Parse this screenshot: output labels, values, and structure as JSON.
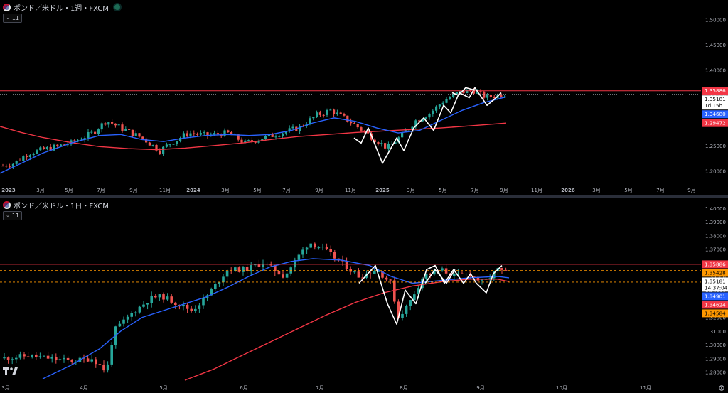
{
  "top_pane": {
    "title": "ポンド／米ドル・1週・FXCM",
    "indicator_count": "11",
    "price_axis": {
      "ticks": [
        "1.50000",
        "1.45000",
        "1.40000",
        "1.35000",
        "1.30000",
        "1.25000",
        "1.20000"
      ],
      "tick_values": [
        1.5,
        1.45,
        1.4,
        1.35,
        1.3,
        1.25,
        1.2
      ],
      "range": [
        1.175,
        1.525
      ]
    },
    "time_axis": {
      "labels": [
        "2023",
        "3月",
        "5月",
        "7月",
        "9月",
        "11月",
        "2024",
        "3月",
        "5月",
        "7月",
        "9月",
        "11月",
        "2025",
        "3月",
        "5月",
        "7月",
        "9月",
        "11月",
        "2026",
        "3月",
        "5月",
        "7月",
        "9月"
      ]
    },
    "price_tags": [
      {
        "label": "1.35886",
        "value": 1.35886,
        "bg": "#f23645",
        "fg": "#ffffff"
      },
      {
        "label": "1.35181",
        "value": 1.35181,
        "bg": "#ffffff",
        "fg": "#000000",
        "sub": [
          "1d 15h"
        ]
      },
      {
        "label": "1.34680",
        "value": 1.3468,
        "bg": "#2962ff",
        "fg": "#ffffff"
      },
      {
        "label": "1.29472",
        "value": 1.29472,
        "bg": "#f23645",
        "fg": "#ffffff"
      }
    ]
  },
  "bottom_pane": {
    "title": "ポンド／米ドル・1日・FXCM",
    "indicator_count": "11",
    "price_axis": {
      "ticks": [
        "1.40000",
        "1.39000",
        "1.38000",
        "1.37000",
        "1.36000",
        "1.35000",
        "1.34000",
        "1.33000",
        "1.32000",
        "1.31000",
        "1.30000",
        "1.29000",
        "1.28000"
      ],
      "tick_values": [
        1.4,
        1.39,
        1.38,
        1.37,
        1.36,
        1.35,
        1.34,
        1.33,
        1.32,
        1.31,
        1.3,
        1.29,
        1.28
      ],
      "range": [
        1.2735,
        1.4025
      ]
    },
    "time_axis": {
      "labels": [
        "3月",
        "4月",
        "5月",
        "6月",
        "7月",
        "8月",
        "9月",
        "10月",
        "11月"
      ]
    },
    "price_tags": [
      {
        "label": "1.35886",
        "value": 1.35886,
        "bg": "#f23645",
        "fg": "#ffffff"
      },
      {
        "label": "1.35428",
        "value": 1.35428,
        "bg": "#ff9800",
        "fg": "#000000"
      },
      {
        "label": "1.35181",
        "value": 1.35181,
        "bg": "#ffffff",
        "fg": "#000000",
        "sub": [
          "14:37:04"
        ]
      },
      {
        "label": "1.34901",
        "value": 1.34901,
        "bg": "#2962ff",
        "fg": "#ffffff"
      },
      {
        "label": "1.34624",
        "value": 1.34624,
        "bg": "#f23645",
        "fg": "#ffffff"
      },
      {
        "label": "1.34584",
        "value": 1.34584,
        "bg": "#ff9800",
        "fg": "#000000"
      }
    ]
  },
  "colors": {
    "up": "#26a69a",
    "down": "#ef5350",
    "ma_fast": "#2962ff",
    "ma_slow": "#f23645",
    "resistance": "#f23645",
    "support_dash": "#ff9800",
    "zigzag": "#ffffff"
  },
  "chart_data": [
    {
      "type": "candlestick",
      "title": "ポンド／米ドル・1週・FXCM",
      "ylim": [
        1.175,
        1.525
      ],
      "x_labels": [
        "2023",
        "3月",
        "5月",
        "7月",
        "9月",
        "11月",
        "2024",
        "3月",
        "5月",
        "7月",
        "9月",
        "11月",
        "2025",
        "3月",
        "5月",
        "7月",
        "9月",
        "11月",
        "2026",
        "3月",
        "5月",
        "7月",
        "9月"
      ],
      "closes": [
        1.205,
        1.215,
        1.22,
        1.235,
        1.24,
        1.23,
        1.245,
        1.25,
        1.255,
        1.26,
        1.26,
        1.255,
        1.265,
        1.27,
        1.28,
        1.275,
        1.285,
        1.29,
        1.3,
        1.305,
        1.31,
        1.3,
        1.285,
        1.28,
        1.275,
        1.27,
        1.265,
        1.255,
        1.25,
        1.245,
        1.24,
        1.235,
        1.23,
        1.225,
        1.225,
        1.23,
        1.24,
        1.25,
        1.26,
        1.265,
        1.275,
        1.275,
        1.27,
        1.265,
        1.27,
        1.27,
        1.275,
        1.27,
        1.265,
        1.26,
        1.265,
        1.27,
        1.26,
        1.255,
        1.25,
        1.255,
        1.26,
        1.265,
        1.27,
        1.275,
        1.275,
        1.27,
        1.265,
        1.27,
        1.28,
        1.285,
        1.29,
        1.3,
        1.31,
        1.315,
        1.32,
        1.33,
        1.34,
        1.335,
        1.33,
        1.32,
        1.31,
        1.3,
        1.29,
        1.28,
        1.27,
        1.26,
        1.255,
        1.25,
        1.245,
        1.24,
        1.235,
        1.23,
        1.235,
        1.245,
        1.255,
        1.265,
        1.27,
        1.275,
        1.285,
        1.29,
        1.3,
        1.31,
        1.32,
        1.33,
        1.34,
        1.345,
        1.35,
        1.355,
        1.36,
        1.37,
        1.365,
        1.355,
        1.345,
        1.34,
        1.345,
        1.35,
        1.355,
        1.352
      ],
      "series": [
        {
          "name": "",
          "values": [
            1.2,
            1.215,
            1.225,
            1.23,
            1.24,
            1.25,
            1.255,
            1.26,
            1.262,
            1.265,
            1.268,
            1.27,
            1.272,
            1.274,
            1.276,
            1.278,
            1.28,
            1.278,
            1.274,
            1.27,
            1.266,
            1.262,
            1.26,
            1.26,
            1.262,
            1.266,
            1.27,
            1.27,
            1.268,
            1.266,
            1.265,
            1.268,
            1.274,
            1.28,
            1.29,
            1.3,
            1.31,
            1.305,
            1.295,
            1.285,
            1.275,
            1.265,
            1.26,
            1.262,
            1.27,
            1.285,
            1.3,
            1.315,
            1.33,
            1.34,
            1.3468
          ]
        },
        {
          "name": "",
          "values": [
            1.285,
            1.276,
            1.266,
            1.258,
            1.252,
            1.248,
            1.245,
            1.243,
            1.242,
            1.244,
            1.248,
            1.252,
            1.256,
            1.26,
            1.264,
            1.267,
            1.27,
            1.273,
            1.276,
            1.278,
            1.28,
            1.283,
            1.286,
            1.29,
            1.2947
          ]
        }
      ]
    },
    {
      "type": "candlestick",
      "title": "ポンド／米ドル・1日・FXCM",
      "ylim": [
        1.2735,
        1.4025
      ],
      "x_labels": [
        "3月",
        "4月",
        "5月",
        "6月",
        "7月",
        "8月",
        "9月",
        "10月",
        "11月"
      ]
    }
  ]
}
